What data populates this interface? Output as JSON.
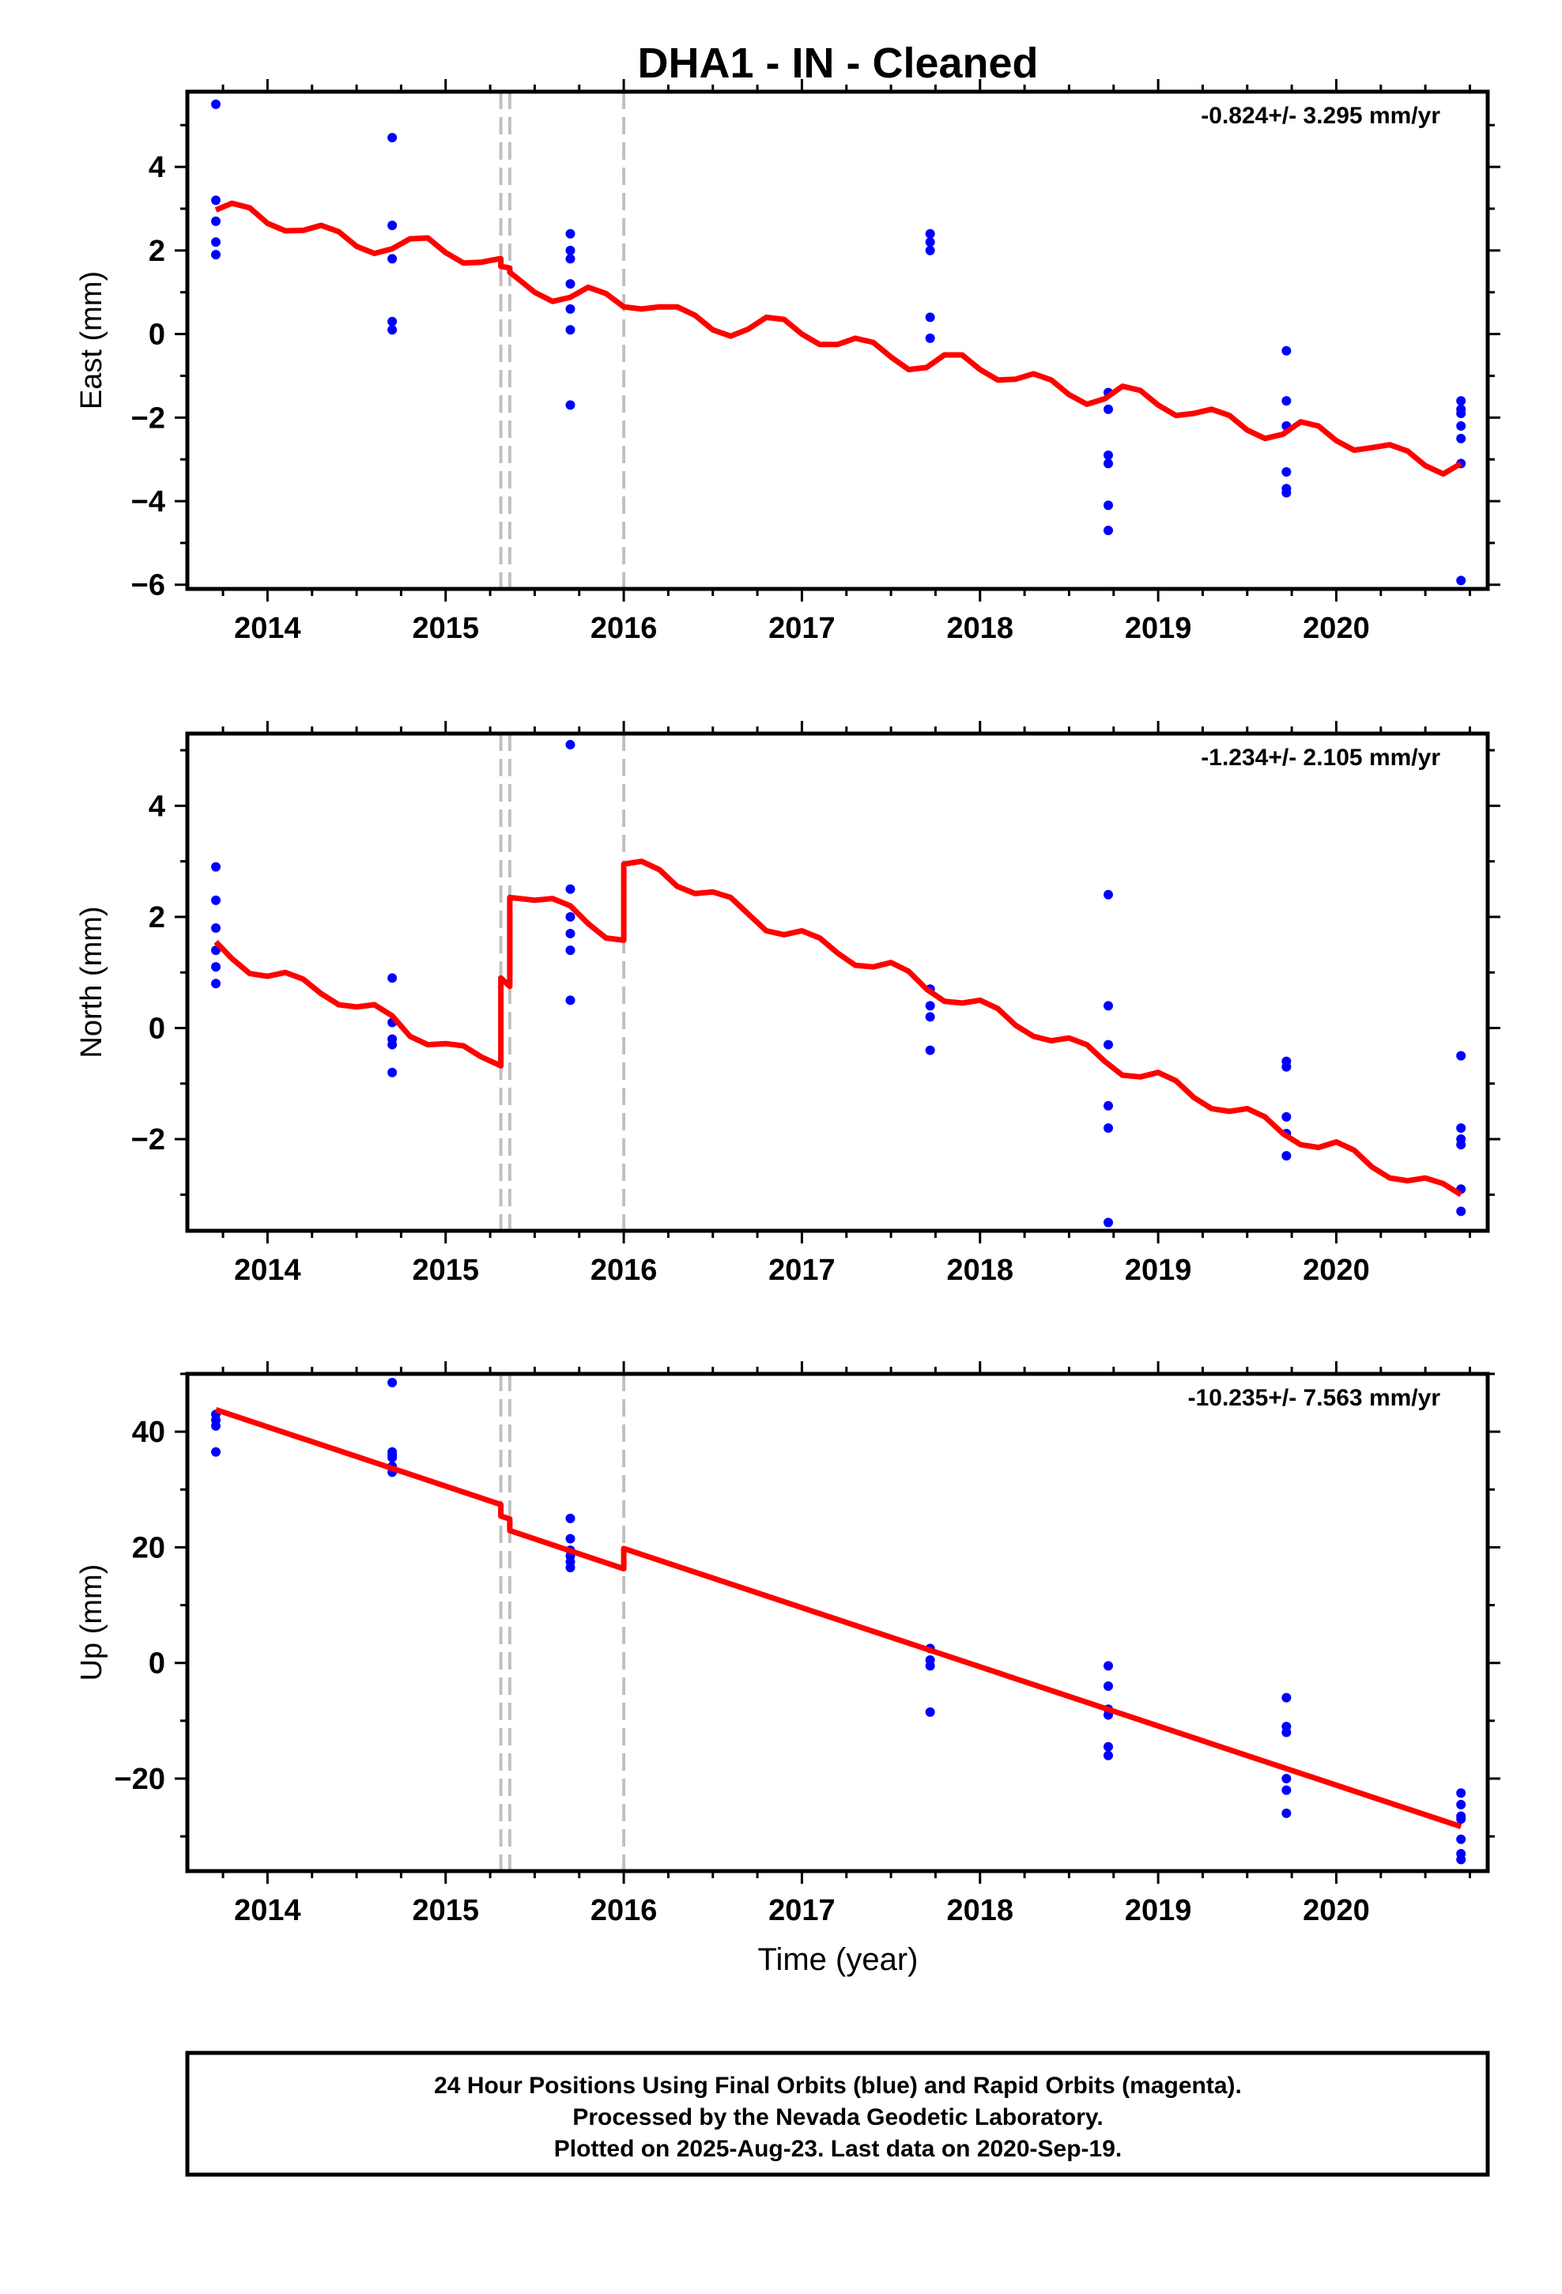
{
  "title": "DHA1  - IN - Cleaned",
  "xlabel": "Time (year)",
  "footer": [
    "24 Hour Positions Using Final Orbits (blue) and Rapid Orbits (magenta).",
    "Processed by the Nevada Geodetic Laboratory.",
    "Plotted on 2025-Aug-23. Last data on 2020-Sep-19."
  ],
  "colors": {
    "points": "#0000ff",
    "model": "#ff0000",
    "events": "#c0c0c0",
    "axes": "#000000"
  },
  "chart_data": [
    {
      "type": "scatter",
      "panel": "east",
      "ylabel": "East (mm)",
      "rate_text": "-0.824+/- 3.295 mm/yr",
      "xlim": [
        2013.55,
        2020.85
      ],
      "ylim": [
        -6.1,
        5.8
      ],
      "xticks": [
        2014,
        2015,
        2016,
        2017,
        2018,
        2019,
        2020
      ],
      "xtick_labels": [
        "2014",
        "2015",
        "2016",
        "2017",
        "2018",
        "2019",
        "2020"
      ],
      "yticks": [
        -6,
        -4,
        -2,
        0,
        2,
        4
      ],
      "ytick_labels": [
        "−6",
        "−4",
        "−2",
        "0",
        "2",
        "4"
      ],
      "event_lines": [
        2015.31,
        2015.36,
        2016.0
      ],
      "points": [
        [
          2013.71,
          5.5
        ],
        [
          2013.71,
          3.2
        ],
        [
          2013.71,
          2.7
        ],
        [
          2013.71,
          2.2
        ],
        [
          2013.71,
          1.9
        ],
        [
          2014.7,
          4.7
        ],
        [
          2014.7,
          2.6
        ],
        [
          2014.7,
          1.8
        ],
        [
          2014.7,
          0.3
        ],
        [
          2014.7,
          0.1
        ],
        [
          2015.7,
          2.4
        ],
        [
          2015.7,
          2.0
        ],
        [
          2015.7,
          1.8
        ],
        [
          2015.7,
          1.2
        ],
        [
          2015.7,
          0.6
        ],
        [
          2015.7,
          0.1
        ],
        [
          2015.7,
          -1.7
        ],
        [
          2017.72,
          2.4
        ],
        [
          2017.72,
          2.2
        ],
        [
          2017.72,
          2.0
        ],
        [
          2017.72,
          0.4
        ],
        [
          2017.72,
          -0.1
        ],
        [
          2018.72,
          -1.4
        ],
        [
          2018.72,
          -1.8
        ],
        [
          2018.72,
          -2.9
        ],
        [
          2018.72,
          -3.1
        ],
        [
          2018.72,
          -4.1
        ],
        [
          2018.72,
          -4.7
        ],
        [
          2019.72,
          -0.4
        ],
        [
          2019.72,
          -1.6
        ],
        [
          2019.72,
          -2.2
        ],
        [
          2019.72,
          -3.3
        ],
        [
          2019.72,
          -3.7
        ],
        [
          2019.72,
          -3.8
        ],
        [
          2020.7,
          -1.6
        ],
        [
          2020.7,
          -1.8
        ],
        [
          2020.7,
          -1.9
        ],
        [
          2020.7,
          -2.2
        ],
        [
          2020.7,
          -2.5
        ],
        [
          2020.7,
          -3.1
        ],
        [
          2020.7,
          -5.9
        ]
      ],
      "model": [
        [
          2013.71,
          2.97
        ],
        [
          2013.8,
          3.13
        ],
        [
          2013.9,
          3.02
        ],
        [
          2014.0,
          2.65
        ],
        [
          2014.1,
          2.47
        ],
        [
          2014.2,
          2.48
        ],
        [
          2014.3,
          2.6
        ],
        [
          2014.4,
          2.45
        ],
        [
          2014.5,
          2.1
        ],
        [
          2014.6,
          1.93
        ],
        [
          2014.7,
          2.04
        ],
        [
          2014.8,
          2.28
        ],
        [
          2014.9,
          2.3
        ],
        [
          2015.0,
          1.95
        ],
        [
          2015.1,
          1.7
        ],
        [
          2015.2,
          1.72
        ],
        [
          2015.3,
          1.8
        ],
        [
          2015.31,
          1.8
        ],
        [
          2015.31,
          1.62
        ],
        [
          2015.36,
          1.58
        ],
        [
          2015.36,
          1.48
        ],
        [
          2015.5,
          1.0
        ],
        [
          2015.6,
          0.78
        ],
        [
          2015.7,
          0.88
        ],
        [
          2015.8,
          1.12
        ],
        [
          2015.9,
          0.97
        ],
        [
          2016.0,
          0.65
        ],
        [
          2016.1,
          0.6
        ],
        [
          2016.2,
          0.65
        ],
        [
          2016.3,
          0.65
        ],
        [
          2016.4,
          0.45
        ],
        [
          2016.5,
          0.1
        ],
        [
          2016.6,
          -0.05
        ],
        [
          2016.7,
          0.12
        ],
        [
          2016.8,
          0.4
        ],
        [
          2016.9,
          0.35
        ],
        [
          2017.0,
          0.0
        ],
        [
          2017.1,
          -0.25
        ],
        [
          2017.2,
          -0.25
        ],
        [
          2017.3,
          -0.1
        ],
        [
          2017.4,
          -0.2
        ],
        [
          2017.5,
          -0.55
        ],
        [
          2017.6,
          -0.85
        ],
        [
          2017.7,
          -0.8
        ],
        [
          2017.8,
          -0.5
        ],
        [
          2017.9,
          -0.5
        ],
        [
          2018.0,
          -0.85
        ],
        [
          2018.1,
          -1.1
        ],
        [
          2018.2,
          -1.08
        ],
        [
          2018.3,
          -0.95
        ],
        [
          2018.4,
          -1.1
        ],
        [
          2018.5,
          -1.45
        ],
        [
          2018.6,
          -1.68
        ],
        [
          2018.7,
          -1.55
        ],
        [
          2018.8,
          -1.25
        ],
        [
          2018.9,
          -1.35
        ],
        [
          2019.0,
          -1.7
        ],
        [
          2019.1,
          -1.95
        ],
        [
          2019.2,
          -1.9
        ],
        [
          2019.3,
          -1.8
        ],
        [
          2019.4,
          -1.95
        ],
        [
          2019.5,
          -2.3
        ],
        [
          2019.6,
          -2.5
        ],
        [
          2019.7,
          -2.4
        ],
        [
          2019.8,
          -2.1
        ],
        [
          2019.9,
          -2.2
        ],
        [
          2020.0,
          -2.55
        ],
        [
          2020.1,
          -2.78
        ],
        [
          2020.2,
          -2.72
        ],
        [
          2020.3,
          -2.65
        ],
        [
          2020.4,
          -2.8
        ],
        [
          2020.5,
          -3.15
        ],
        [
          2020.6,
          -3.35
        ],
        [
          2020.7,
          -3.1
        ]
      ]
    },
    {
      "type": "scatter",
      "panel": "north",
      "ylabel": "North (mm)",
      "rate_text": "-1.234+/- 2.105 mm/yr",
      "xlim": [
        2013.55,
        2020.85
      ],
      "ylim": [
        -3.65,
        5.3
      ],
      "xticks": [
        2014,
        2015,
        2016,
        2017,
        2018,
        2019,
        2020
      ],
      "xtick_labels": [
        "2014",
        "2015",
        "2016",
        "2017",
        "2018",
        "2019",
        "2020"
      ],
      "yticks": [
        -2,
        0,
        2,
        4
      ],
      "ytick_labels": [
        "−2",
        "0",
        "2",
        "4"
      ],
      "event_lines": [
        2015.31,
        2015.36,
        2016.0
      ],
      "points": [
        [
          2013.71,
          2.9
        ],
        [
          2013.71,
          2.3
        ],
        [
          2013.71,
          1.8
        ],
        [
          2013.71,
          1.4
        ],
        [
          2013.71,
          1.1
        ],
        [
          2013.71,
          0.8
        ],
        [
          2014.7,
          0.9
        ],
        [
          2014.7,
          0.1
        ],
        [
          2014.7,
          -0.2
        ],
        [
          2014.7,
          -0.3
        ],
        [
          2014.7,
          -0.8
        ],
        [
          2015.7,
          5.1
        ],
        [
          2015.7,
          2.5
        ],
        [
          2015.7,
          2.0
        ],
        [
          2015.7,
          1.7
        ],
        [
          2015.7,
          1.4
        ],
        [
          2015.7,
          0.5
        ],
        [
          2017.72,
          0.7
        ],
        [
          2017.72,
          0.4
        ],
        [
          2017.72,
          0.2
        ],
        [
          2017.72,
          -0.4
        ],
        [
          2018.72,
          2.4
        ],
        [
          2018.72,
          0.4
        ],
        [
          2018.72,
          -0.3
        ],
        [
          2018.72,
          -1.4
        ],
        [
          2018.72,
          -1.8
        ],
        [
          2018.72,
          -3.5
        ],
        [
          2019.72,
          -0.6
        ],
        [
          2019.72,
          -0.7
        ],
        [
          2019.72,
          -1.6
        ],
        [
          2019.72,
          -1.9
        ],
        [
          2019.72,
          -2.3
        ],
        [
          2020.7,
          -0.5
        ],
        [
          2020.7,
          -1.8
        ],
        [
          2020.7,
          -2.0
        ],
        [
          2020.7,
          -2.1
        ],
        [
          2020.7,
          -2.9
        ],
        [
          2020.7,
          -3.3
        ]
      ],
      "model": [
        [
          2013.71,
          1.55
        ],
        [
          2013.8,
          1.25
        ],
        [
          2013.9,
          0.98
        ],
        [
          2014.0,
          0.93
        ],
        [
          2014.1,
          1.0
        ],
        [
          2014.2,
          0.88
        ],
        [
          2014.3,
          0.62
        ],
        [
          2014.4,
          0.42
        ],
        [
          2014.5,
          0.38
        ],
        [
          2014.6,
          0.42
        ],
        [
          2014.7,
          0.22
        ],
        [
          2014.8,
          -0.15
        ],
        [
          2014.9,
          -0.3
        ],
        [
          2015.0,
          -0.28
        ],
        [
          2015.1,
          -0.32
        ],
        [
          2015.2,
          -0.52
        ],
        [
          2015.31,
          -0.68
        ],
        [
          2015.31,
          0.9
        ],
        [
          2015.36,
          0.75
        ],
        [
          2015.36,
          2.35
        ],
        [
          2015.5,
          2.3
        ],
        [
          2015.6,
          2.33
        ],
        [
          2015.7,
          2.2
        ],
        [
          2015.8,
          1.88
        ],
        [
          2015.9,
          1.62
        ],
        [
          2016.0,
          1.58
        ],
        [
          2016.0,
          2.95
        ],
        [
          2016.1,
          3.0
        ],
        [
          2016.2,
          2.85
        ],
        [
          2016.3,
          2.55
        ],
        [
          2016.4,
          2.42
        ],
        [
          2016.5,
          2.45
        ],
        [
          2016.6,
          2.35
        ],
        [
          2016.7,
          2.05
        ],
        [
          2016.8,
          1.75
        ],
        [
          2016.9,
          1.68
        ],
        [
          2017.0,
          1.75
        ],
        [
          2017.1,
          1.62
        ],
        [
          2017.2,
          1.35
        ],
        [
          2017.3,
          1.13
        ],
        [
          2017.4,
          1.1
        ],
        [
          2017.5,
          1.18
        ],
        [
          2017.6,
          1.02
        ],
        [
          2017.7,
          0.7
        ],
        [
          2017.8,
          0.48
        ],
        [
          2017.9,
          0.45
        ],
        [
          2018.0,
          0.5
        ],
        [
          2018.1,
          0.35
        ],
        [
          2018.2,
          0.05
        ],
        [
          2018.3,
          -0.15
        ],
        [
          2018.4,
          -0.23
        ],
        [
          2018.5,
          -0.18
        ],
        [
          2018.6,
          -0.3
        ],
        [
          2018.7,
          -0.6
        ],
        [
          2018.8,
          -0.85
        ],
        [
          2018.9,
          -0.88
        ],
        [
          2019.0,
          -0.8
        ],
        [
          2019.1,
          -0.95
        ],
        [
          2019.2,
          -1.25
        ],
        [
          2019.3,
          -1.45
        ],
        [
          2019.4,
          -1.5
        ],
        [
          2019.5,
          -1.45
        ],
        [
          2019.6,
          -1.6
        ],
        [
          2019.7,
          -1.9
        ],
        [
          2019.8,
          -2.1
        ],
        [
          2019.9,
          -2.15
        ],
        [
          2020.0,
          -2.05
        ],
        [
          2020.1,
          -2.2
        ],
        [
          2020.2,
          -2.5
        ],
        [
          2020.3,
          -2.7
        ],
        [
          2020.4,
          -2.75
        ],
        [
          2020.5,
          -2.7
        ],
        [
          2020.6,
          -2.8
        ],
        [
          2020.7,
          -3.0
        ]
      ]
    },
    {
      "type": "scatter",
      "panel": "up",
      "ylabel": "Up (mm)",
      "rate_text": "-10.235+/- 7.563 mm/yr",
      "xlim": [
        2013.55,
        2020.85
      ],
      "ylim": [
        -36,
        50
      ],
      "xticks": [
        2014,
        2015,
        2016,
        2017,
        2018,
        2019,
        2020
      ],
      "xtick_labels": [
        "2014",
        "2015",
        "2016",
        "2017",
        "2018",
        "2019",
        "2020"
      ],
      "yticks": [
        -20,
        0,
        20,
        40
      ],
      "ytick_labels": [
        "−20",
        "0",
        "20",
        "40"
      ],
      "event_lines": [
        2015.31,
        2015.36,
        2016.0
      ],
      "points": [
        [
          2013.71,
          43
        ],
        [
          2013.71,
          42
        ],
        [
          2013.71,
          41
        ],
        [
          2013.71,
          36.5
        ],
        [
          2014.7,
          48.5
        ],
        [
          2014.7,
          36.5
        ],
        [
          2014.7,
          36
        ],
        [
          2014.7,
          35.5
        ],
        [
          2014.7,
          34
        ],
        [
          2014.7,
          33
        ],
        [
          2015.7,
          25
        ],
        [
          2015.7,
          21.5
        ],
        [
          2015.7,
          19.5
        ],
        [
          2015.7,
          18.5
        ],
        [
          2015.7,
          17.5
        ],
        [
          2015.7,
          16.5
        ],
        [
          2017.72,
          2.5
        ],
        [
          2017.72,
          0.5
        ],
        [
          2017.72,
          -0.5
        ],
        [
          2017.72,
          -8.5
        ],
        [
          2018.72,
          -0.5
        ],
        [
          2018.72,
          -4
        ],
        [
          2018.72,
          -8
        ],
        [
          2018.72,
          -9
        ],
        [
          2018.72,
          -14.5
        ],
        [
          2018.72,
          -16
        ],
        [
          2019.72,
          -6
        ],
        [
          2019.72,
          -11
        ],
        [
          2019.72,
          -12
        ],
        [
          2019.72,
          -20
        ],
        [
          2019.72,
          -22
        ],
        [
          2019.72,
          -26
        ],
        [
          2020.7,
          -22.5
        ],
        [
          2020.7,
          -24.5
        ],
        [
          2020.7,
          -26.5
        ],
        [
          2020.7,
          -27
        ],
        [
          2020.7,
          -30.5
        ],
        [
          2020.7,
          -33
        ],
        [
          2020.7,
          -34
        ]
      ],
      "model": [
        [
          2013.71,
          43.8
        ],
        [
          2015.31,
          27.4
        ],
        [
          2015.31,
          25.4
        ],
        [
          2015.36,
          24.9
        ],
        [
          2015.36,
          22.9
        ],
        [
          2016.0,
          16.3
        ],
        [
          2016.0,
          19.8
        ],
        [
          2020.7,
          -28.3
        ]
      ]
    }
  ]
}
